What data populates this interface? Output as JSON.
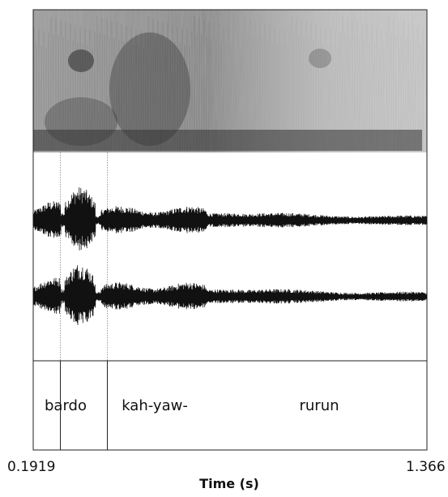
{
  "figure": {
    "segments": [
      {
        "label": "bardo",
        "start": 0.1919,
        "end": 0.2729
      },
      {
        "label": "kah-yaw-",
        "start": 0.2729,
        "end": 0.4129
      },
      {
        "label": "rurun",
        "start": 0.4129,
        "end": 1.366
      }
    ],
    "time_axis": {
      "start_label": "0.1919",
      "end_label": "1.366",
      "title": "Time (s)"
    }
  }
}
